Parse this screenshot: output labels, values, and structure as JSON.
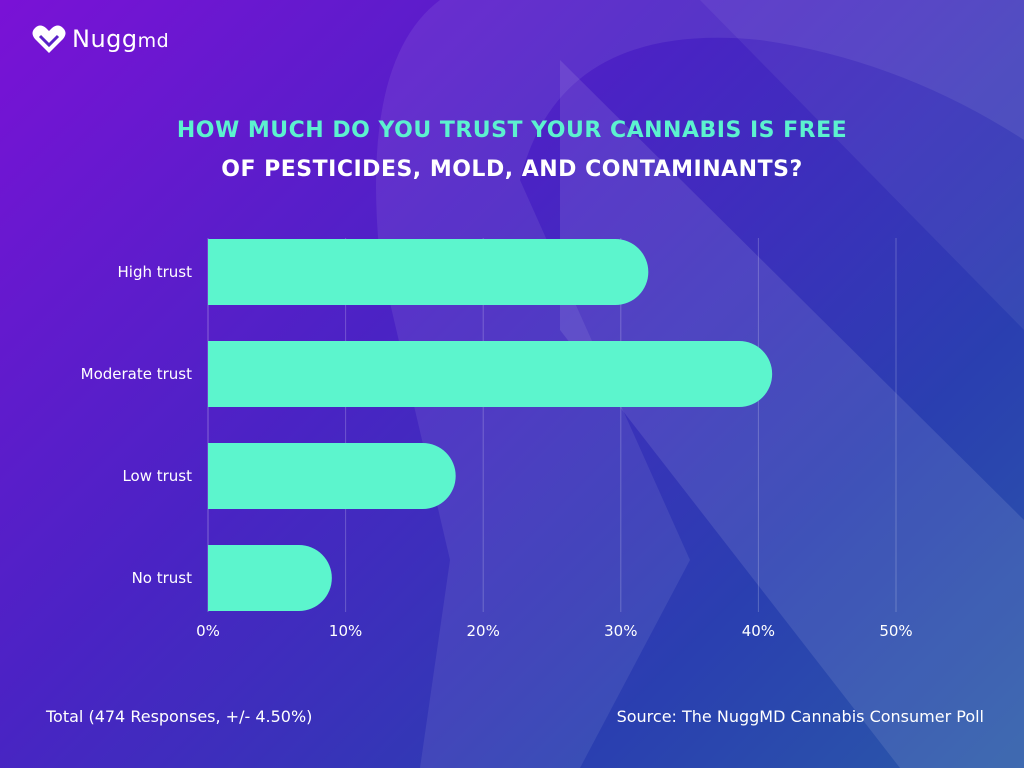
{
  "brand": {
    "name": "Nugg",
    "suffix": "md",
    "icon": "heart-icon"
  },
  "title": {
    "line1": "HOW MUCH DO YOU TRUST YOUR CANNABIS IS FREE",
    "line2": "OF PESTICIDES, MOLD, AND CONTAMINANTS?"
  },
  "chart_data": {
    "type": "bar",
    "orientation": "horizontal",
    "categories": [
      "High trust",
      "Moderate trust",
      "Low trust",
      "No trust"
    ],
    "values": [
      32,
      41,
      18,
      9
    ],
    "x_ticks": [
      "0%",
      "10%",
      "20%",
      "30%",
      "40%",
      "50%"
    ],
    "xlim": [
      0,
      50
    ],
    "grid": true,
    "bar_color": "#5cf5cd"
  },
  "footer": {
    "left": "Total (474 Responses, +/- 4.50%)",
    "right": "Source: The NuggMD Cannabis Consumer Poll"
  },
  "colors": {
    "accent": "#5cf2cf",
    "background_start": "#7a12d6",
    "background_end": "#2a5aa8"
  }
}
